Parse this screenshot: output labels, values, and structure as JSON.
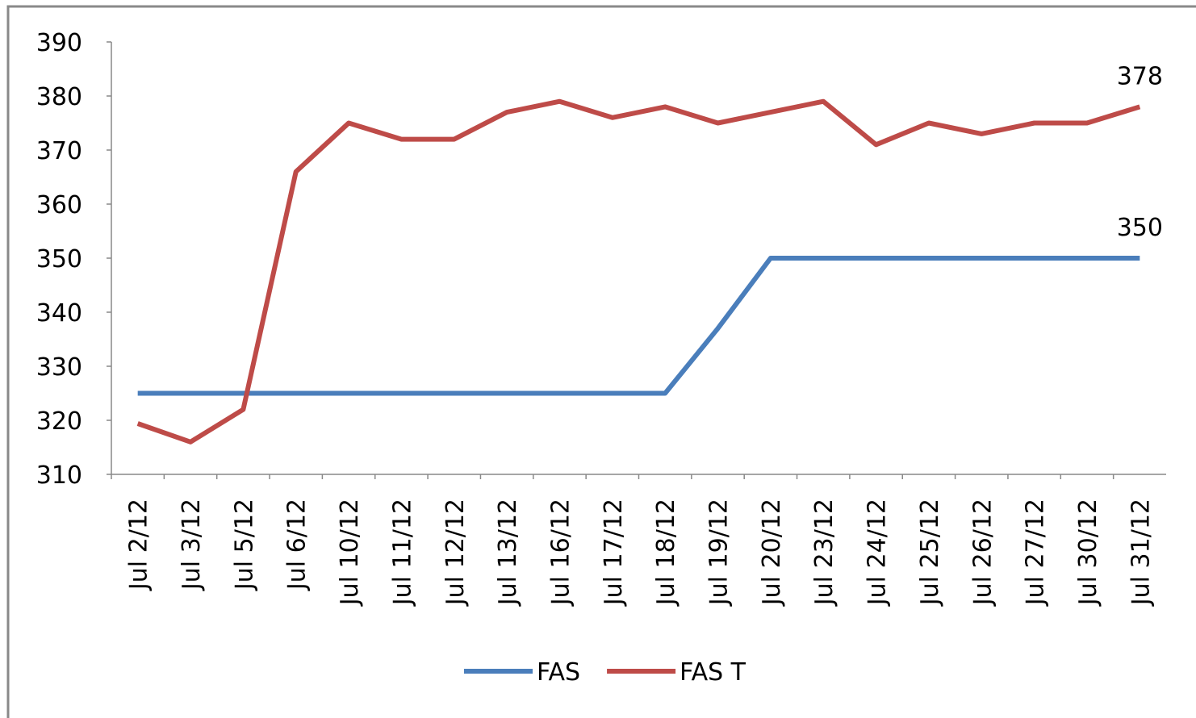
{
  "chart_data": {
    "type": "line",
    "categories": [
      "Jul 2/12",
      "Jul 3/12",
      "Jul 5/12",
      "Jul 6/12",
      "Jul 10/12",
      "Jul 11/12",
      "Jul 12/12",
      "Jul 13/12",
      "Jul 16/12",
      "Jul 17/12",
      "Jul 18/12",
      "Jul 19/12",
      "Jul 20/12",
      "Jul 23/12",
      "Jul 24/12",
      "Jul 25/12",
      "Jul 26/12",
      "Jul 27/12",
      "Jul 30/12",
      "Jul 31/12"
    ],
    "series": [
      {
        "name": "FAS",
        "color": "#4a7ebb",
        "values": [
          325,
          325,
          325,
          325,
          325,
          325,
          325,
          325,
          325,
          325,
          325,
          337,
          350,
          350,
          350,
          350,
          350,
          350,
          350,
          350
        ]
      },
      {
        "name": "FAS T",
        "color": "#be4b48",
        "values": [
          319.4,
          316,
          322,
          366,
          375,
          372,
          372,
          377,
          379,
          376,
          378,
          375,
          377,
          379,
          371,
          375,
          373,
          375,
          375,
          378
        ]
      }
    ],
    "ylim": [
      310,
      390
    ],
    "yticks": [
      310,
      320,
      330,
      340,
      350,
      360,
      370,
      380,
      390
    ],
    "legend": "bottom"
  }
}
